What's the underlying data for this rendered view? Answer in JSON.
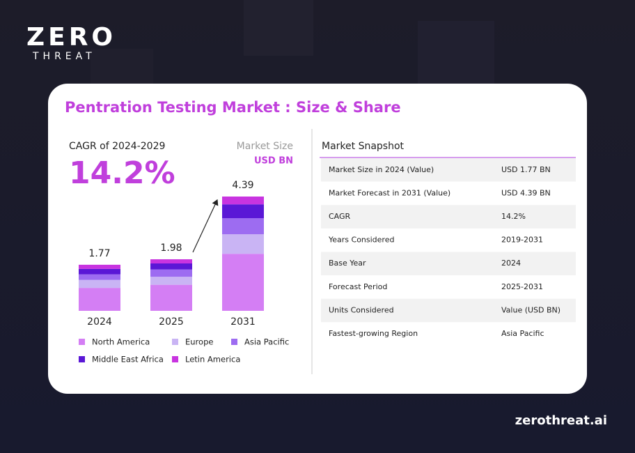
{
  "logo": {
    "word": "ZERO",
    "sub": "THREAT"
  },
  "title": "Pentration Testing Market : Size & Share",
  "cagr": {
    "label": "CAGR of 2024-2029",
    "value": "14.2%"
  },
  "chart_data": {
    "type": "bar",
    "stacked": true,
    "unit_title": "Market Size",
    "unit": "USD BN",
    "categories": [
      "2024",
      "2025",
      "2031"
    ],
    "totals": [
      1.77,
      1.98,
      4.39
    ],
    "series": [
      {
        "name": "North America",
        "color": "#d47ef4",
        "values": [
          0.88,
          1.0,
          2.19
        ]
      },
      {
        "name": "Europe",
        "color": "#c9b4f4",
        "values": [
          0.31,
          0.31,
          0.75
        ]
      },
      {
        "name": "Asia Pacific",
        "color": "#9d6cf1",
        "values": [
          0.21,
          0.28,
          0.62
        ]
      },
      {
        "name": "Middle East Africa",
        "color": "#5a17d6",
        "values": [
          0.21,
          0.23,
          0.53
        ]
      },
      {
        "name": "Letin America",
        "color": "#c834e0",
        "values": [
          0.16,
          0.16,
          0.3
        ]
      }
    ]
  },
  "snapshot": {
    "title": "Market Snapshot",
    "rows": [
      [
        "Market Size in 2024 (Value)",
        "USD 1.77 BN"
      ],
      [
        "Market Forecast in 2031 (Value)",
        "USD 4.39 BN"
      ],
      [
        "CAGR",
        "14.2%"
      ],
      [
        "Years Considered",
        "2019-2031"
      ],
      [
        "Base Year",
        "2024"
      ],
      [
        "Forecast Period",
        "2025-2031"
      ],
      [
        "Units Considered",
        "Value (USD BN)"
      ],
      [
        "Fastest-growing Region",
        "Asia Pacific"
      ]
    ]
  },
  "footer": "zerothreat.ai"
}
